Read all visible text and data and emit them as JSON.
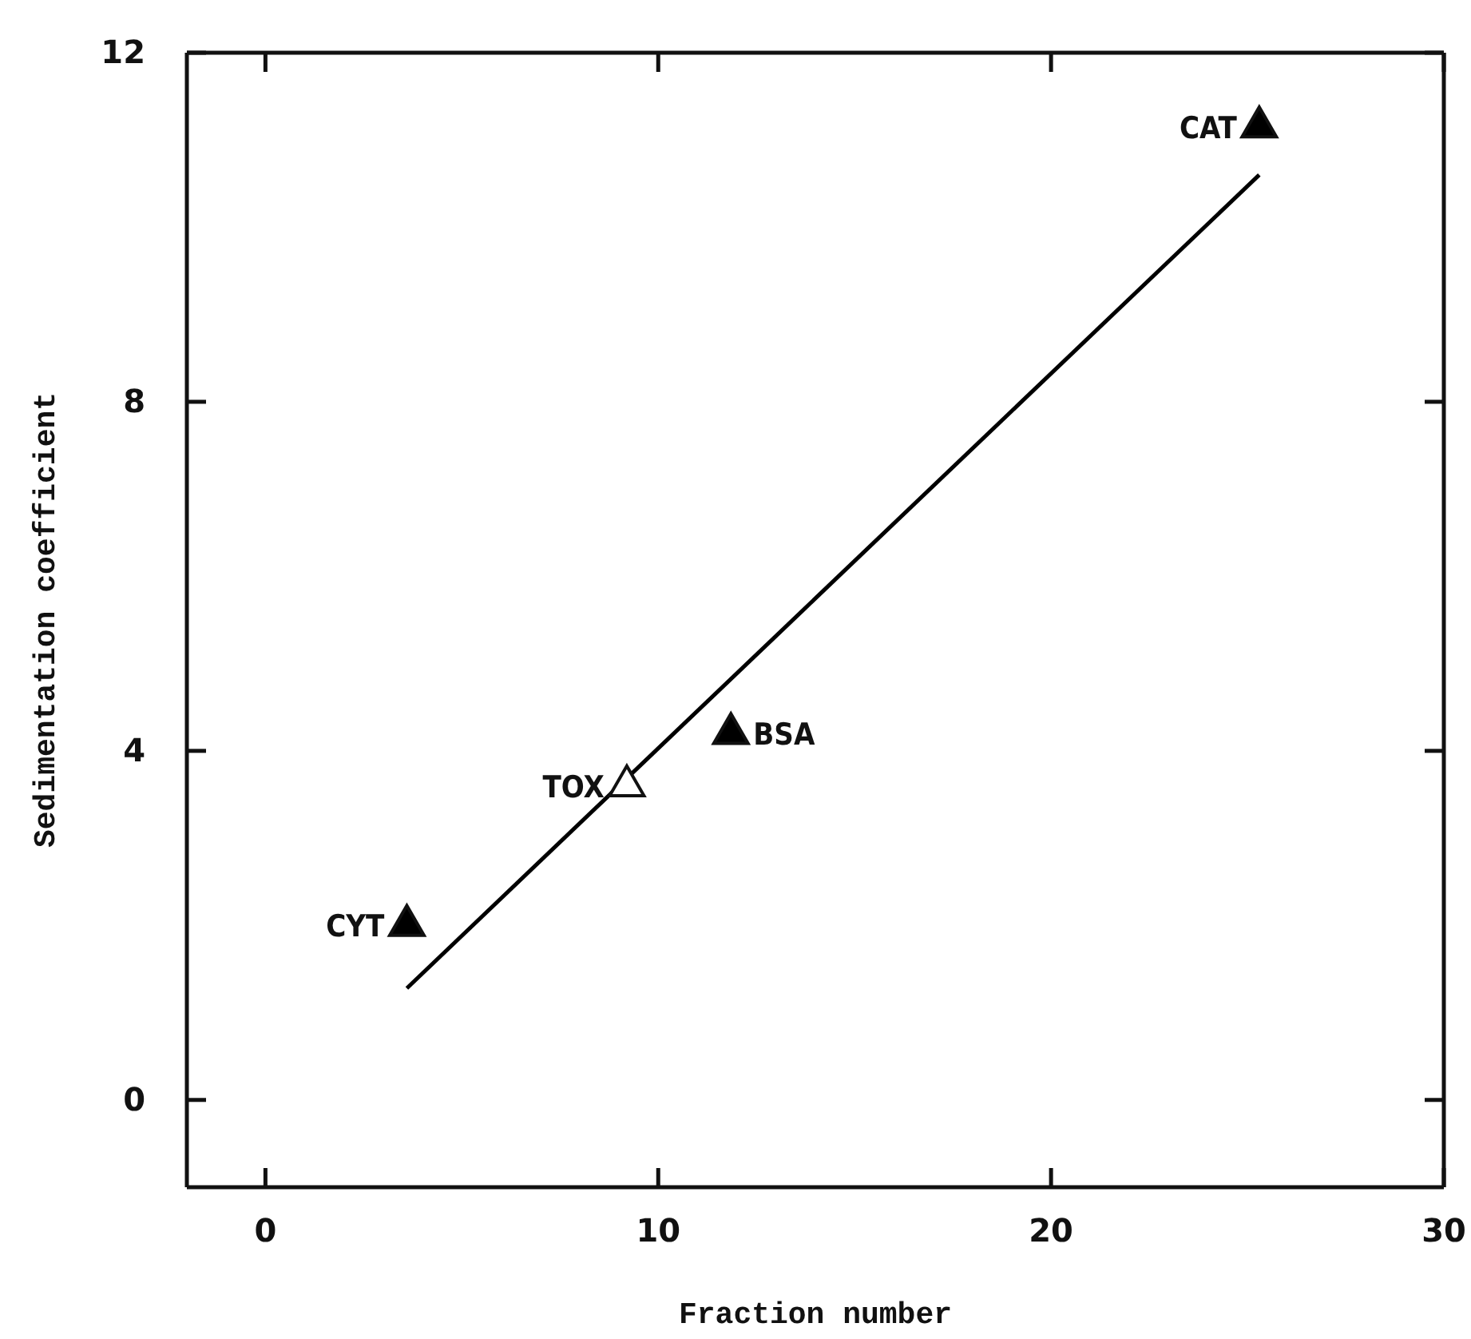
{
  "chart_data": {
    "type": "scatter",
    "xlabel": "Fraction number",
    "ylabel": "Sedimentation coefficient",
    "xlim": [
      -2,
      30
    ],
    "ylim": [
      -1,
      12
    ],
    "xticks": [
      0,
      10,
      20,
      30
    ],
    "yticks": [
      0,
      4,
      8,
      12
    ],
    "marker": "triangle",
    "grid": false,
    "series": [
      {
        "color": "#000000",
        "x": [
          3.6,
          11.85,
          25.3
        ],
        "values": [
          2.0,
          4.2,
          11.15
        ]
      },
      {
        "color": "#ffffff",
        "x": [
          9.2
        ],
        "values": [
          3.6
        ]
      },
      {
        "type": "line",
        "marker": "none",
        "color": "#000000",
        "x": [
          3.6,
          25.3
        ],
        "values": [
          1.28,
          10.6
        ]
      }
    ],
    "annotations": [
      {
        "text": "CYT",
        "x": 3.6,
        "y": 2.0
      },
      {
        "text": "TOX",
        "x": 9.2,
        "y": 3.6
      },
      {
        "text": "BSA",
        "x": 11.85,
        "y": 4.2
      },
      {
        "text": "CAT",
        "x": 25.3,
        "y": 11.15
      }
    ]
  }
}
